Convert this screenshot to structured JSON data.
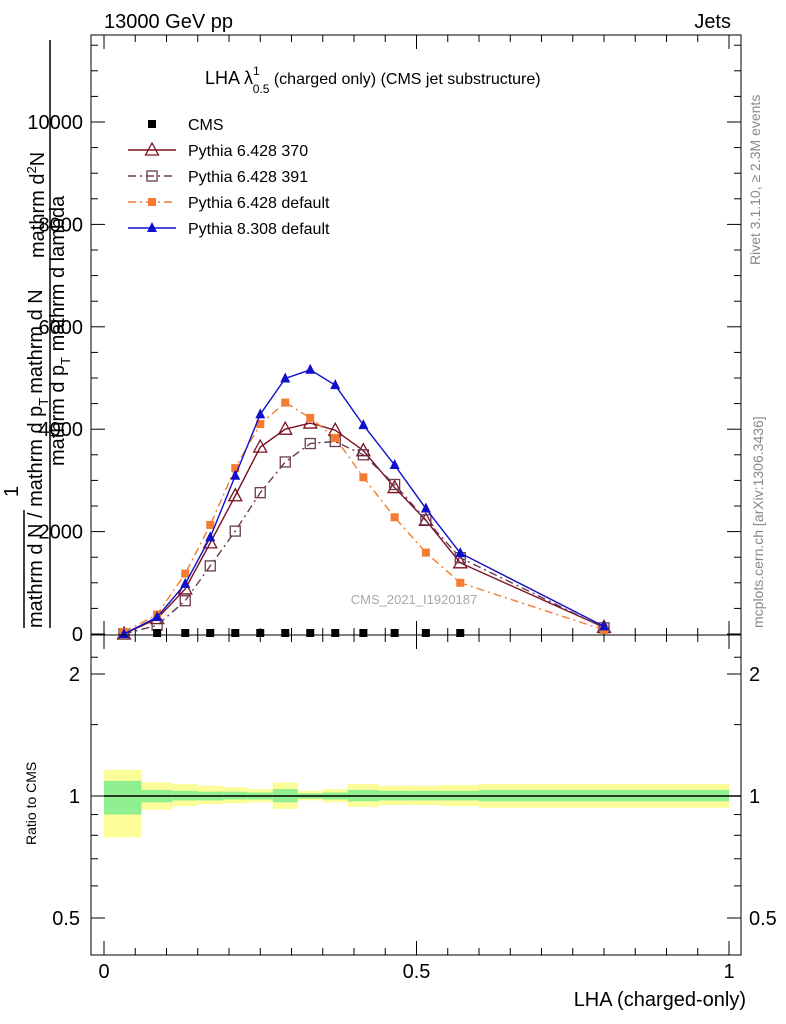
{
  "header": {
    "left": "13000 GeV pp",
    "right": "Jets"
  },
  "title": {
    "main": "LHA λ",
    "sup": "1",
    "sub": "0.5",
    "rest": " (charged only) (CMS jet substructure)"
  },
  "watermark": "CMS_2021_I1920187",
  "side_labels": {
    "rivet": "Rivet 3.1.10, ≥ 2.3M events",
    "mcplots": "mcplots.cern.ch [arXiv:1306.3436]"
  },
  "ylabel_main": {
    "num_top": "mathrm d",
    "num_sup": "2",
    "num_rest": "N",
    "den": "mathrm d p",
    "den_sub": "T",
    "den_rest": " mathrm d lambda",
    "frac_one": "1",
    "left_num": "mathrm d N / mathrm d p",
    "left_sub": "T",
    "left_den": "mathrm d N"
  },
  "ylabel_ratio": "Ratio to CMS",
  "xlabel": "LHA (charged-only)",
  "chart_data": {
    "type": "line",
    "main_y_ticks": [
      {
        "v": 0,
        "label": "0"
      },
      {
        "v": 2000,
        "label": "2000"
      },
      {
        "v": 4000,
        "label": "4000"
      },
      {
        "v": 6000,
        "label": "6000"
      },
      {
        "v": 8000,
        "label": "8000"
      },
      {
        "v": 10000,
        "label": "10000"
      }
    ],
    "ylim": [
      0,
      11800
    ],
    "xlim": [
      -0.02,
      1.0
    ],
    "x_ticks": [
      {
        "v": 0,
        "label": "0"
      },
      {
        "v": 0.5,
        "label": "0.5"
      },
      {
        "v": 1,
        "label": "1"
      }
    ],
    "ratio_ylim": [
      0.36,
      2.26
    ],
    "ratio_ticks": [
      {
        "v": 0.5,
        "label": "0.5"
      },
      {
        "v": 1,
        "label": "1"
      },
      {
        "v": 2,
        "label": "2"
      }
    ],
    "x": [
      0.032,
      0.085,
      0.13,
      0.17,
      0.21,
      0.25,
      0.29,
      0.33,
      0.37,
      0.415,
      0.465,
      0.515,
      0.57,
      0.8
    ],
    "series": [
      {
        "name": "CMS",
        "color": "#000000",
        "marker": "square-filled",
        "dash": "none",
        "values": [
          0,
          0,
          0,
          0,
          0,
          0,
          0,
          0,
          0,
          0,
          0,
          0,
          0,
          null
        ]
      },
      {
        "name": "Pythia 6.428 370",
        "color": "#7b1020",
        "marker": "triangle-open",
        "dash": "solid",
        "values": [
          0,
          300,
          880,
          1780,
          2700,
          3650,
          4000,
          4120,
          3980,
          3580,
          2860,
          2220,
          1390,
          130
        ]
      },
      {
        "name": "Pythia 6.428 391",
        "color": "#6a3a4e",
        "marker": "square-open",
        "dash": "dashdot",
        "values": [
          0,
          170,
          650,
          1330,
          2010,
          2760,
          3360,
          3720,
          3760,
          3500,
          2920,
          2230,
          1490,
          120
        ]
      },
      {
        "name": "Pythia 6.428 default",
        "color": "#f47b30",
        "marker": "square-filled",
        "dash": "dashdot",
        "values": [
          40,
          380,
          1180,
          2130,
          3240,
          4100,
          4520,
          4220,
          3830,
          3060,
          2280,
          1590,
          1000,
          80
        ]
      },
      {
        "name": "Pythia 8.308 default",
        "color": "#1010cc",
        "marker": "triangle-filled",
        "dash": "solid",
        "values": [
          0,
          330,
          980,
          1890,
          3090,
          4290,
          4990,
          5160,
          4860,
          4080,
          3300,
          2450,
          1580,
          150
        ]
      }
    ],
    "cms_markers_x": [
      0.085,
      0.13,
      0.17,
      0.21,
      0.25,
      0.29,
      0.33,
      0.37,
      0.415,
      0.465,
      0.515,
      0.57
    ],
    "ratio_bands": [
      {
        "x0": 0.0,
        "x1": 0.06,
        "y_lo": 0.9,
        "y_hi": 1.09,
        "y2_lo": 0.79,
        "y2_hi": 1.16
      },
      {
        "x0": 0.06,
        "x1": 0.11,
        "y_lo": 0.965,
        "y2_lo": 0.925,
        "y_hi": 1.035,
        "y2_hi": 1.08
      },
      {
        "x0": 0.11,
        "x1": 0.15,
        "y_lo": 0.975,
        "y2_lo": 0.945,
        "y_hi": 1.03,
        "y2_hi": 1.07
      },
      {
        "x0": 0.15,
        "x1": 0.19,
        "y_lo": 0.975,
        "y2_lo": 0.955,
        "y_hi": 1.025,
        "y2_hi": 1.06
      },
      {
        "x0": 0.19,
        "x1": 0.23,
        "y_lo": 0.98,
        "y2_lo": 0.96,
        "y_hi": 1.025,
        "y2_hi": 1.05
      },
      {
        "x0": 0.23,
        "x1": 0.27,
        "y_lo": 0.98,
        "y2_lo": 0.965,
        "y_hi": 1.02,
        "y2_hi": 1.04
      },
      {
        "x0": 0.27,
        "x1": 0.31,
        "y_lo": 0.965,
        "y2_lo": 0.93,
        "y_hi": 1.04,
        "y2_hi": 1.08
      },
      {
        "x0": 0.31,
        "x1": 0.35,
        "y_lo": 0.985,
        "y2_lo": 0.975,
        "y_hi": 1.015,
        "y2_hi": 1.03
      },
      {
        "x0": 0.35,
        "x1": 0.39,
        "y_lo": 0.98,
        "y2_lo": 0.965,
        "y_hi": 1.02,
        "y2_hi": 1.04
      },
      {
        "x0": 0.39,
        "x1": 0.44,
        "y_lo": 0.97,
        "y2_lo": 0.94,
        "y_hi": 1.035,
        "y2_hi": 1.07
      },
      {
        "x0": 0.44,
        "x1": 0.49,
        "y_lo": 0.975,
        "y2_lo": 0.95,
        "y_hi": 1.03,
        "y2_hi": 1.06
      },
      {
        "x0": 0.49,
        "x1": 0.54,
        "y_lo": 0.975,
        "y2_lo": 0.95,
        "y_hi": 1.03,
        "y2_hi": 1.06
      },
      {
        "x0": 0.54,
        "x1": 0.6,
        "y_lo": 0.975,
        "y2_lo": 0.945,
        "y_hi": 1.03,
        "y2_hi": 1.065
      },
      {
        "x0": 0.6,
        "x1": 1.0,
        "y_lo": 0.97,
        "y2_lo": 0.935,
        "y_hi": 1.035,
        "y2_hi": 1.07
      }
    ],
    "band_colors": {
      "inner": "#90f090",
      "outer": "#fcfc98"
    }
  }
}
